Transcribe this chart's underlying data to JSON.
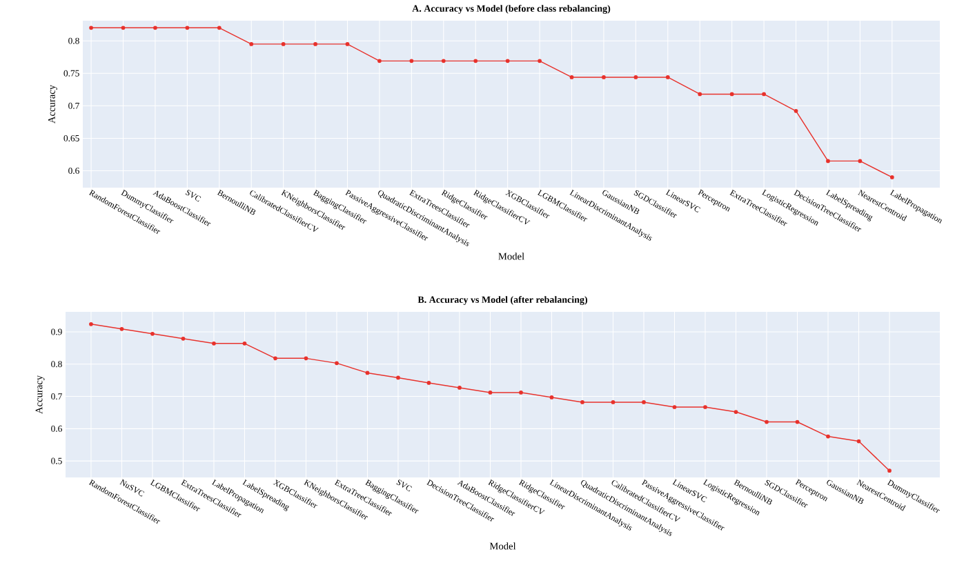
{
  "chart_data": [
    {
      "type": "line",
      "title": "A. Accuracy vs Model (before class rebalancing)",
      "xlabel": "Model",
      "ylabel": "Accuracy",
      "categories": [
        "RandomForestClassifier",
        "DummyClassifier",
        "AdaBoostClassifier",
        "SVC",
        "BernoulliNB",
        "CalibratedClassifierCV",
        "KNeighborsClassifier",
        "BaggingClassifier",
        "PassiveAggressiveClassifier",
        "QuadraticDiscriminantAnalysis",
        "ExtraTreesClassifier",
        "RidgeClassifier",
        "RidgeClassifierCV",
        "XGBClassifier",
        "LGBMClassifier",
        "LinearDiscriminantAnalysis",
        "GaussianNB",
        "SGDClassifier",
        "LinearSVC",
        "Perceptron",
        "ExtraTreeClassifier",
        "LogisticRegression",
        "DecisionTreeClassifier",
        "LabelSpreading",
        "NearestCentroid",
        "LabelPropagation"
      ],
      "values": [
        0.82,
        0.82,
        0.82,
        0.82,
        0.82,
        0.795,
        0.795,
        0.795,
        0.795,
        0.769,
        0.769,
        0.769,
        0.769,
        0.769,
        0.769,
        0.744,
        0.744,
        0.744,
        0.744,
        0.718,
        0.718,
        0.718,
        0.692,
        0.615,
        0.615,
        0.59
      ],
      "color": "#e8322c",
      "marker": "circle",
      "grid": true,
      "ylim": [
        0.574,
        0.831
      ],
      "yticks": [
        0.6,
        0.65,
        0.7,
        0.75,
        0.8
      ]
    },
    {
      "type": "line",
      "title": "B. Accuracy vs Model (after rebalancing)",
      "xlabel": "Model",
      "ylabel": "Accuracy",
      "categories": [
        "RandomForestClassifier",
        "NuSVC",
        "LGBMClassifier",
        "ExtraTreesClassifier",
        "LabelPropagation",
        "LabelSpreading",
        "XGBClassifier",
        "KNeighborsClassifier",
        "ExtraTreeClassifier",
        "BaggingClassifier",
        "SVC",
        "DecisionTreeClassifier",
        "AdaBoostClassifier",
        "RidgeClassifierCV",
        "RidgeClassifier",
        "LinearDiscriminantAnalysis",
        "QuadraticDiscriminantAnalysis",
        "CalibratedClassifierCV",
        "PassiveAggressiveClassifier",
        "LinearSVC",
        "LogisticRegression",
        "BernoulliNB",
        "SGDClassifier",
        "Perceptron",
        "GaussianNB",
        "NearestCentroid",
        "DummyClassifier"
      ],
      "values": [
        0.924,
        0.909,
        0.894,
        0.879,
        0.864,
        0.864,
        0.818,
        0.818,
        0.803,
        0.773,
        0.758,
        0.742,
        0.727,
        0.712,
        0.712,
        0.697,
        0.682,
        0.682,
        0.682,
        0.667,
        0.667,
        0.652,
        0.621,
        0.621,
        0.576,
        0.561,
        0.47
      ],
      "color": "#e8322c",
      "marker": "circle",
      "grid": true,
      "ylim": [
        0.449,
        0.962
      ],
      "yticks": [
        0.5,
        0.6,
        0.7,
        0.8,
        0.9
      ]
    }
  ]
}
